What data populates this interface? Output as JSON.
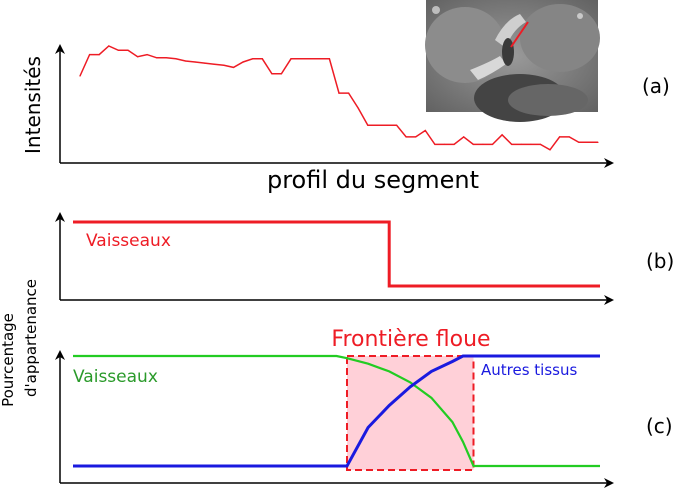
{
  "figure": {
    "panel_labels": [
      "(a)",
      "(b)",
      "(c)"
    ],
    "panel_a": {
      "ylabel": "Intensités",
      "xlabel": "profil du segment",
      "inset_description": "MRI crop with a red segment marking the sampled profile",
      "line_color": "#ee1c25"
    },
    "panel_b": {
      "label": "Vaisseaux",
      "line_color": "#ee1c25"
    },
    "panel_c": {
      "ylabel_line1": "Pourcentage",
      "ylabel_line2": "d'appartenance",
      "title": "Frontière floue",
      "label_vessels": "Vaisseaux",
      "label_other": "Autres tissus",
      "vessel_color": "#22cc22",
      "vessel_label_color": "#2a9a2a",
      "other_color": "#1a1adf",
      "fuzzy_fill": "#ffd0d8",
      "fuzzy_border": "#ee1c25"
    }
  },
  "chart_data": [
    {
      "type": "line",
      "title": "",
      "xlabel": "profil du segment",
      "ylabel": "Intensités",
      "x": [
        0,
        1,
        2,
        3,
        4,
        5,
        6,
        7,
        8,
        9,
        10,
        11,
        12,
        13,
        14,
        15,
        16,
        17,
        18,
        19,
        20,
        21,
        22,
        23,
        24,
        25,
        26,
        27,
        28,
        29,
        30,
        31,
        32,
        33,
        34,
        35,
        36,
        37,
        38,
        39,
        40,
        41,
        42,
        43,
        44,
        45,
        46,
        47,
        48,
        49,
        50,
        51,
        52,
        53,
        54
      ],
      "series": [
        {
          "values": [
            0.72,
            0.92,
            0.92,
            1.0,
            0.96,
            0.96,
            0.9,
            0.92,
            0.89,
            0.89,
            0.88,
            0.86,
            0.85,
            0.84,
            0.83,
            0.82,
            0.8,
            0.85,
            0.88,
            0.88,
            0.74,
            0.74,
            0.88,
            0.88,
            0.88,
            0.88,
            0.88,
            0.56,
            0.56,
            0.42,
            0.26,
            0.26,
            0.26,
            0.26,
            0.15,
            0.15,
            0.21,
            0.08,
            0.08,
            0.08,
            0.15,
            0.08,
            0.08,
            0.08,
            0.17,
            0.08,
            0.08,
            0.08,
            0.08,
            0.03,
            0.15,
            0.15,
            0.1,
            0.1,
            0.1
          ]
        }
      ]
    },
    {
      "type": "line",
      "title": "",
      "xlabel": "",
      "ylabel": "",
      "x": [
        0,
        0.6,
        0.6,
        1.0
      ],
      "series": [
        {
          "name": "Vaisseaux",
          "values": [
            1,
            1,
            0,
            0
          ]
        }
      ]
    },
    {
      "type": "line",
      "title": "Frontière floue",
      "xlabel": "",
      "ylabel": "Pourcentage d'appartenance",
      "x": [
        0,
        0.5,
        0.52,
        0.56,
        0.6,
        0.64,
        0.68,
        0.72,
        0.74,
        0.76,
        1.0
      ],
      "fuzzy_region": [
        0.52,
        0.76
      ],
      "series": [
        {
          "name": "Vaisseaux",
          "values": [
            1.0,
            1.0,
            0.98,
            0.93,
            0.86,
            0.76,
            0.62,
            0.4,
            0.22,
            0.0,
            0.0
          ]
        },
        {
          "name": "Autres tissus",
          "values": [
            0.0,
            0.0,
            0.0,
            0.35,
            0.55,
            0.72,
            0.86,
            0.95,
            1.0,
            1.0,
            1.0
          ]
        }
      ]
    }
  ]
}
